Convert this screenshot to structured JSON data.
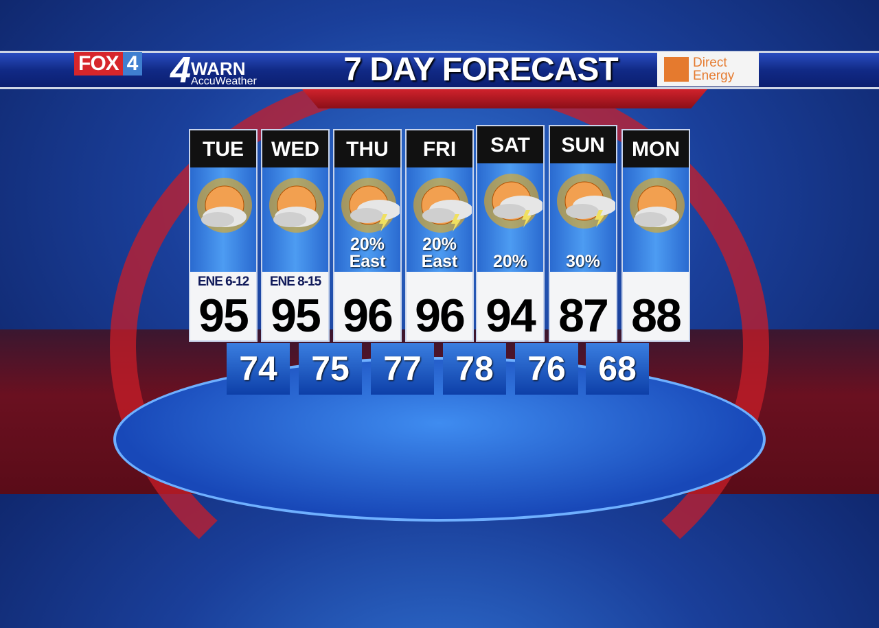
{
  "header": {
    "station_logo": "FOX 4",
    "warn_logo": {
      "number": "4",
      "word": "WARN",
      "sub": "AccuWeather"
    },
    "title": "7 DAY FORECAST",
    "sponsor": "Direct Energy"
  },
  "colors": {
    "banner": "#112a86",
    "accent_red": "#d0222c",
    "low_box": "#1a55c4",
    "sponsor": "#e57a2e"
  },
  "days": [
    {
      "day": "TUE",
      "icon": "partly-cloudy-icon",
      "precip": "",
      "wind": "ENE 6-12",
      "high": "95",
      "low": "74"
    },
    {
      "day": "WED",
      "icon": "partly-cloudy-icon",
      "precip": "",
      "wind": "ENE 8-15",
      "high": "95",
      "low": "75"
    },
    {
      "day": "THU",
      "icon": "partly-cloudy-tstorm-icon",
      "precip": "20%",
      "precip_note": "East",
      "wind": "",
      "high": "96",
      "low": "77"
    },
    {
      "day": "FRI",
      "icon": "partly-cloudy-tstorm-icon",
      "precip": "20%",
      "precip_note": "East",
      "wind": "",
      "high": "96",
      "low": "78"
    },
    {
      "day": "SAT",
      "icon": "partly-cloudy-tstorm-icon",
      "precip": "20%",
      "wind": "",
      "high": "94",
      "low": "76"
    },
    {
      "day": "SUN",
      "icon": "mostly-cloudy-tstorm-icon",
      "precip": "30%",
      "wind": "",
      "high": "87",
      "low": "68"
    },
    {
      "day": "MON",
      "icon": "partly-cloudy-icon",
      "precip": "",
      "wind": "",
      "high": "88",
      "low": ""
    }
  ]
}
